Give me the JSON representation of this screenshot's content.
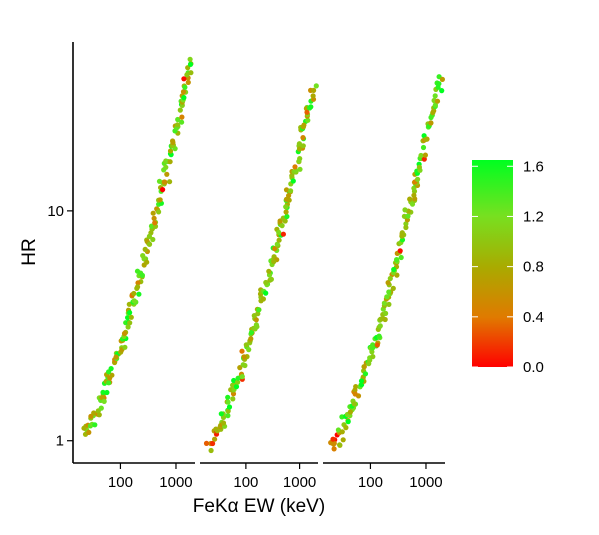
{
  "chart_data": {
    "type": "scatter",
    "xlabel": "FeKα EW (keV)",
    "ylabel": "HR",
    "x_scale": "log",
    "y_scale": "log",
    "ylim": [
      0.8,
      60
    ],
    "y_ticks": [
      1,
      10
    ],
    "y_tick_labels": [
      "1",
      "10"
    ],
    "panels": [
      {
        "x_ticks": [
          100,
          1000
        ],
        "x_tick_labels": [
          "100",
          "1000"
        ],
        "xlim": [
          14,
          2200
        ]
      },
      {
        "x_ticks": [
          100,
          1000
        ],
        "x_tick_labels": [
          "100",
          "1000"
        ],
        "xlim": [
          14,
          2200
        ]
      },
      {
        "x_ticks": [
          100,
          1000
        ],
        "x_tick_labels": [
          "100",
          "1000"
        ],
        "xlim": [
          14,
          2200
        ]
      }
    ],
    "curves": [
      {
        "x_start": 22,
        "x_end": 1880,
        "y_start": 1.08,
        "y_end": 46
      },
      {
        "x_start": 20,
        "x_end": 1850,
        "y_start": 0.98,
        "y_end": 34
      },
      {
        "x_start": 20,
        "x_end": 1800,
        "y_start": 0.93,
        "y_end": 38
      }
    ],
    "colorbar": {
      "ticks": [
        0.0,
        0.4,
        0.8,
        1.2,
        1.6
      ],
      "tick_labels": [
        "0.0",
        "0.4",
        "0.8",
        "1.2",
        "1.6"
      ],
      "range": [
        0.0,
        1.65
      ],
      "colors": [
        "#ff0000",
        "#e07a00",
        "#aaaa00",
        "#77e020",
        "#00ff20"
      ]
    },
    "grid": false,
    "legend": "colorbar-right"
  }
}
